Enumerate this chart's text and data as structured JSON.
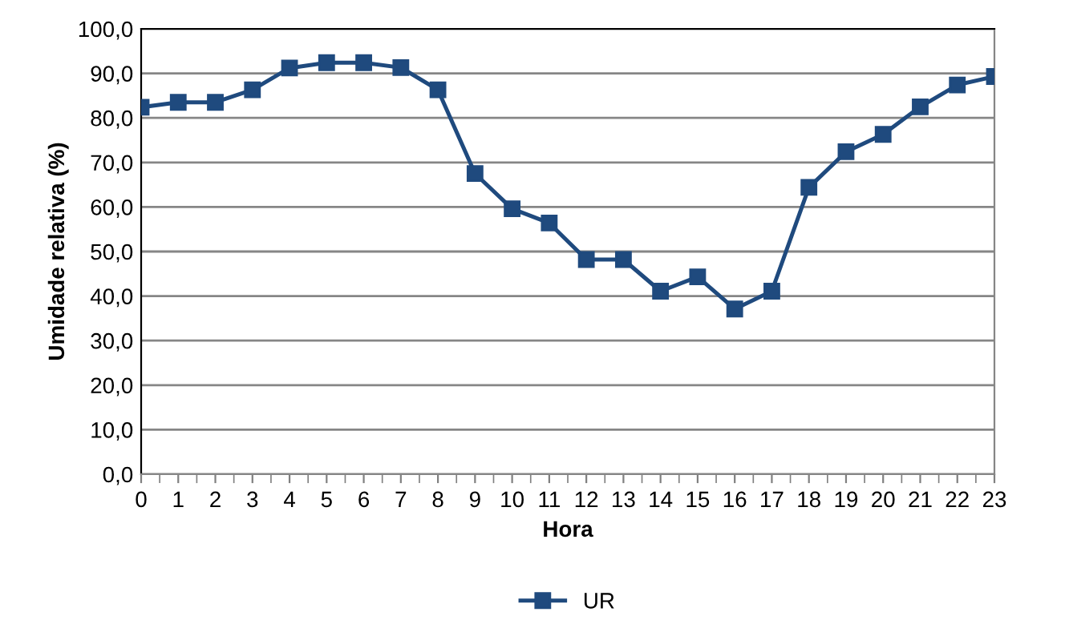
{
  "chart_data": {
    "type": "line",
    "xlabel": "Hora",
    "ylabel": "Umidade relativa (%)",
    "x": [
      0,
      1,
      2,
      3,
      4,
      5,
      6,
      7,
      8,
      9,
      10,
      11,
      12,
      13,
      14,
      15,
      16,
      17,
      18,
      19,
      20,
      21,
      22,
      23
    ],
    "series": [
      {
        "name": "UR",
        "color": "#1f4a7e",
        "values": [
          82.4,
          83.5,
          83.5,
          86.3,
          91.2,
          92.4,
          92.4,
          91.3,
          86.3,
          67.5,
          59.6,
          56.4,
          48.2,
          48.2,
          41.1,
          44.3,
          37.1,
          41.1,
          64.4,
          72.4,
          76.3,
          82.5,
          87.4,
          89.3
        ]
      }
    ],
    "xlim": [
      0,
      23
    ],
    "xticks": [
      0,
      1,
      2,
      3,
      4,
      5,
      6,
      7,
      8,
      9,
      10,
      11,
      12,
      13,
      14,
      15,
      16,
      17,
      18,
      19,
      20,
      21,
      22,
      23
    ],
    "ylim": [
      0,
      100
    ],
    "yticks": [
      {
        "value": 0,
        "label": "0,0"
      },
      {
        "value": 10,
        "label": "10,0"
      },
      {
        "value": 20,
        "label": "20,0"
      },
      {
        "value": 30,
        "label": "30,0"
      },
      {
        "value": 40,
        "label": "40,0"
      },
      {
        "value": 50,
        "label": "50,0"
      },
      {
        "value": 60,
        "label": "60,0"
      },
      {
        "value": 70,
        "label": "70,0"
      },
      {
        "value": 80,
        "label": "80,0"
      },
      {
        "value": 90,
        "label": "90,0"
      },
      {
        "value": 100,
        "label": "100,0"
      }
    ],
    "grid": "y",
    "legend": "bottom",
    "marker": "square",
    "line_style": "solid"
  }
}
